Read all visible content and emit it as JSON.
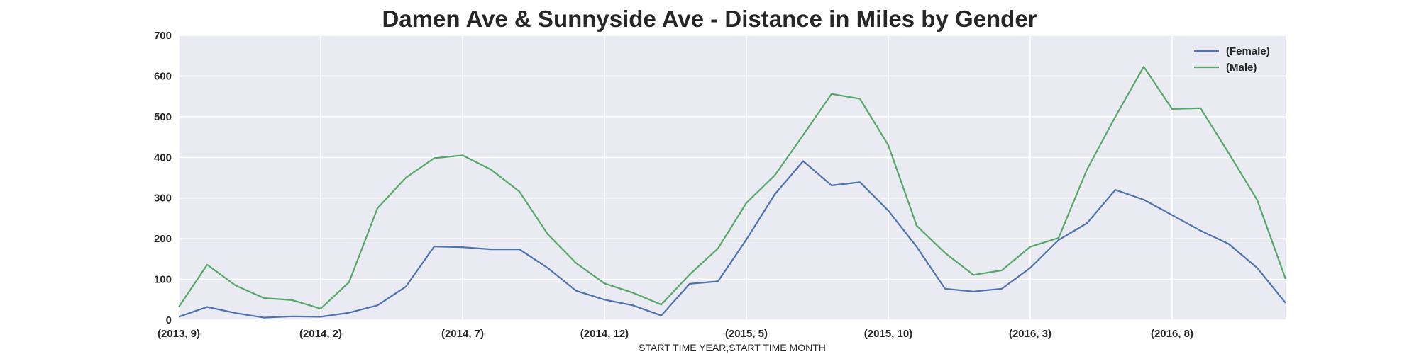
{
  "chart_data": {
    "type": "line",
    "title": "Damen Ave & Sunnyside Ave - Distance in Miles by Gender",
    "xlabel": "START TIME YEAR,START TIME MONTH",
    "ylabel": "",
    "ylim": [
      0,
      700
    ],
    "yticks": [
      0,
      100,
      200,
      300,
      400,
      500,
      600,
      700
    ],
    "grid": true,
    "legend_position": "top-right",
    "x": [
      "(2013, 9)",
      "(2013, 10)",
      "(2013, 11)",
      "(2013, 12)",
      "(2014, 1)",
      "(2014, 2)",
      "(2014, 3)",
      "(2014, 4)",
      "(2014, 5)",
      "(2014, 6)",
      "(2014, 7)",
      "(2014, 8)",
      "(2014, 9)",
      "(2014, 10)",
      "(2014, 11)",
      "(2014, 12)",
      "(2015, 1)",
      "(2015, 2)",
      "(2015, 3)",
      "(2015, 4)",
      "(2015, 5)",
      "(2015, 6)",
      "(2015, 7)",
      "(2015, 8)",
      "(2015, 9)",
      "(2015, 10)",
      "(2015, 11)",
      "(2015, 12)",
      "(2016, 1)",
      "(2016, 2)",
      "(2016, 3)",
      "(2016, 4)",
      "(2016, 5)",
      "(2016, 6)",
      "(2016, 7)",
      "(2016, 8)",
      "(2016, 9)",
      "(2016, 10)",
      "(2016, 11)",
      "(2016, 12)"
    ],
    "xtick_labels": [
      "(2013, 9)",
      "(2014, 2)",
      "(2014, 7)",
      "(2014, 12)",
      "(2015, 5)",
      "(2015, 10)",
      "(2016, 3)",
      "(2016, 8)"
    ],
    "xtick_indices": [
      0,
      5,
      10,
      15,
      20,
      25,
      30,
      35
    ],
    "series": [
      {
        "name": "(Female)",
        "color": "#4c72b0",
        "values": [
          8,
          32,
          17,
          6,
          9,
          8,
          18,
          36,
          82,
          181,
          179,
          174,
          174,
          128,
          72,
          50,
          36,
          11,
          89,
          95,
          198,
          309,
          391,
          331,
          339,
          269,
          180,
          77,
          70,
          77,
          128,
          197,
          238,
          320,
          296,
          258,
          220,
          187,
          128,
          42
        ]
      },
      {
        "name": "(Male)",
        "color": "#55a868",
        "values": [
          32,
          136,
          85,
          54,
          49,
          28,
          93,
          275,
          350,
          398,
          405,
          370,
          316,
          211,
          140,
          90,
          67,
          38,
          112,
          176,
          288,
          356,
          455,
          556,
          544,
          430,
          232,
          165,
          111,
          122,
          180,
          202,
          370,
          500,
          623,
          519,
          521,
          410,
          295,
          101
        ]
      }
    ]
  }
}
